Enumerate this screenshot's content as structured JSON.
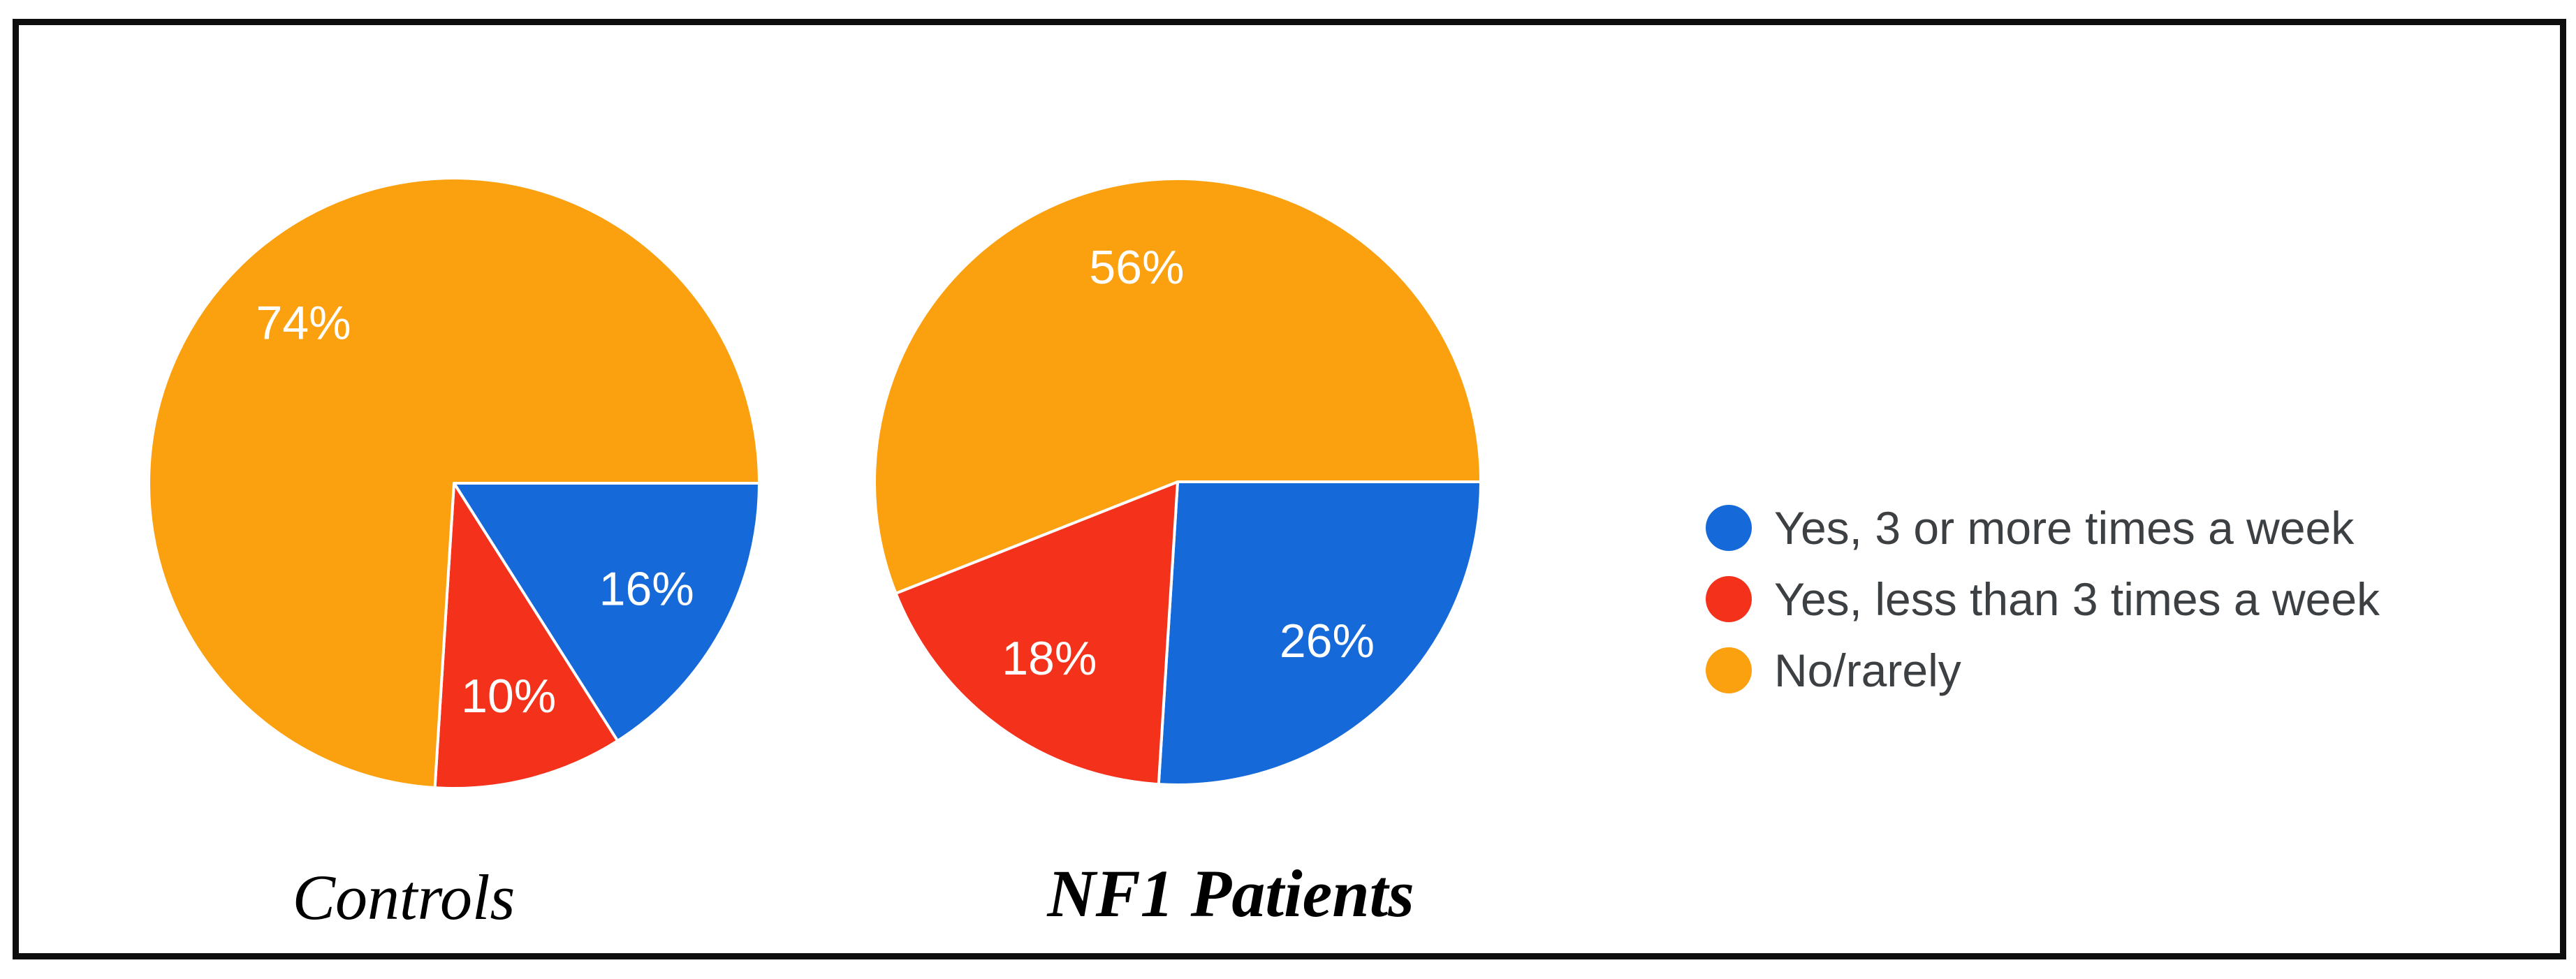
{
  "figure": {
    "background_color": "#ffffff",
    "frame_color": "#0e0e0e"
  },
  "chart_data": [
    {
      "type": "pie",
      "title": "Controls",
      "start_angle_deg": 0,
      "direction": "clockwise",
      "value_label_format": "{value}%",
      "slices": [
        {
          "label": "Yes, 3 or more times a week",
          "value": 16,
          "color": "#1569d8"
        },
        {
          "label": "Yes, less than 3 times a week",
          "value": 10,
          "color": "#f4321c"
        },
        {
          "label": "No/rarely",
          "value": 74,
          "color": "#fba00f"
        }
      ]
    },
    {
      "type": "pie",
      "title": "NF1 Patients",
      "start_angle_deg": 0,
      "direction": "clockwise",
      "value_label_format": "{value}%",
      "slices": [
        {
          "label": "Yes, 3 or more times a week",
          "value": 26,
          "color": "#1569d8"
        },
        {
          "label": "Yes, less than 3 times a week",
          "value": 18,
          "color": "#f4321c"
        },
        {
          "label": "No/rarely",
          "value": 56,
          "color": "#fba00f"
        }
      ]
    }
  ],
  "legend": {
    "position": "right",
    "text_color": "#3c4043",
    "items": [
      {
        "label": "Yes, 3 or more times a week",
        "color": "#1569d8"
      },
      {
        "label": "Yes, less than 3 times a week",
        "color": "#f4321c"
      },
      {
        "label": "No/rarely",
        "color": "#fba00f"
      }
    ]
  }
}
